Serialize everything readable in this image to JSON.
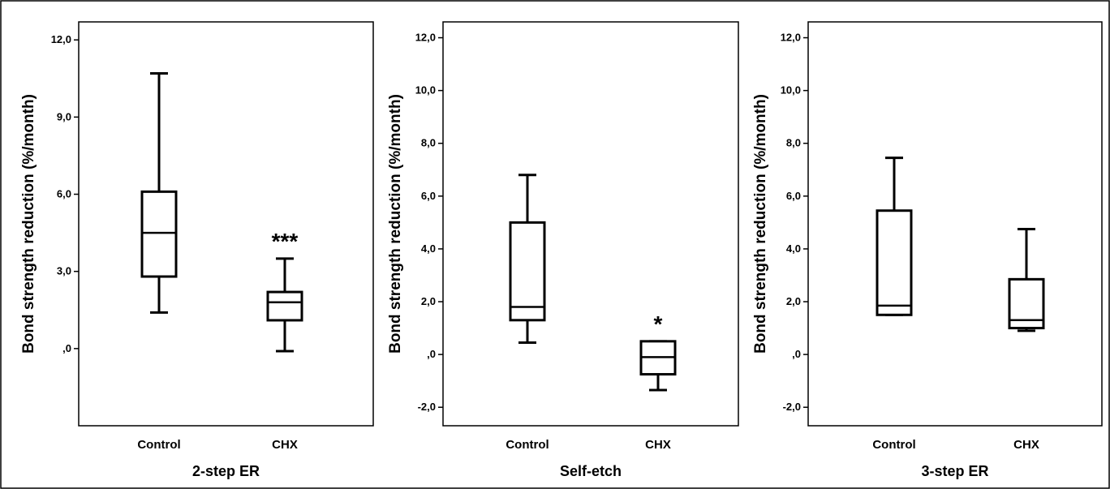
{
  "chart_data": [
    {
      "type": "box",
      "title": "",
      "xlabel": "2-step ER",
      "ylabel": "Bond strength reduction (%/month)",
      "ylim": [
        -3.0,
        12.7
      ],
      "yticks": [
        0,
        3,
        6,
        9,
        12
      ],
      "ytick_labels": [
        ",0",
        "3,0",
        "6,0",
        "9,0",
        "12,0"
      ],
      "categories": [
        "Control",
        "CHX"
      ],
      "boxes": [
        {
          "category": "Control",
          "min": 1.4,
          "q1": 2.8,
          "median": 4.5,
          "q3": 6.1,
          "max": 10.7,
          "annotation": ""
        },
        {
          "category": "CHX",
          "min": -0.1,
          "q1": 1.1,
          "median": 1.8,
          "q3": 2.2,
          "max": 3.5,
          "annotation": "***"
        }
      ],
      "grid": false
    },
    {
      "type": "box",
      "title": "",
      "xlabel": "Self-etch",
      "ylabel": "Bond strength reduction (%/month)",
      "ylim": [
        -2.7,
        12.6
      ],
      "yticks": [
        -2,
        0,
        2,
        4,
        6,
        8,
        10,
        12
      ],
      "ytick_labels": [
        "-2,0",
        ",0",
        "2,0",
        "4,0",
        "6,0",
        "8,0",
        "10,0",
        "12,0"
      ],
      "categories": [
        "Control",
        "CHX"
      ],
      "boxes": [
        {
          "category": "Control",
          "min": 0.45,
          "q1": 1.3,
          "median": 1.8,
          "q3": 5.0,
          "max": 6.8,
          "annotation": ""
        },
        {
          "category": "CHX",
          "min": -1.35,
          "q1": -0.75,
          "median": -0.1,
          "q3": 0.5,
          "max": 0.5,
          "annotation": "*"
        }
      ],
      "grid": false
    },
    {
      "type": "box",
      "title": "",
      "xlabel": "3-step ER",
      "ylabel": "Bond strength reduction (%/month)",
      "ylim": [
        -2.7,
        12.6
      ],
      "yticks": [
        -2,
        0,
        2,
        4,
        6,
        8,
        10,
        12
      ],
      "ytick_labels": [
        "-2,0",
        ",0",
        "2,0",
        "4,0",
        "6,0",
        "8,0",
        "10,0",
        "12,0"
      ],
      "categories": [
        "Control",
        "CHX"
      ],
      "boxes": [
        {
          "category": "Control",
          "min": 1.5,
          "q1": 1.5,
          "median": 1.85,
          "q3": 5.45,
          "max": 7.45,
          "annotation": ""
        },
        {
          "category": "CHX",
          "min": 0.9,
          "q1": 1.0,
          "median": 1.3,
          "q3": 2.85,
          "max": 4.75,
          "annotation": ""
        }
      ],
      "grid": false
    }
  ]
}
